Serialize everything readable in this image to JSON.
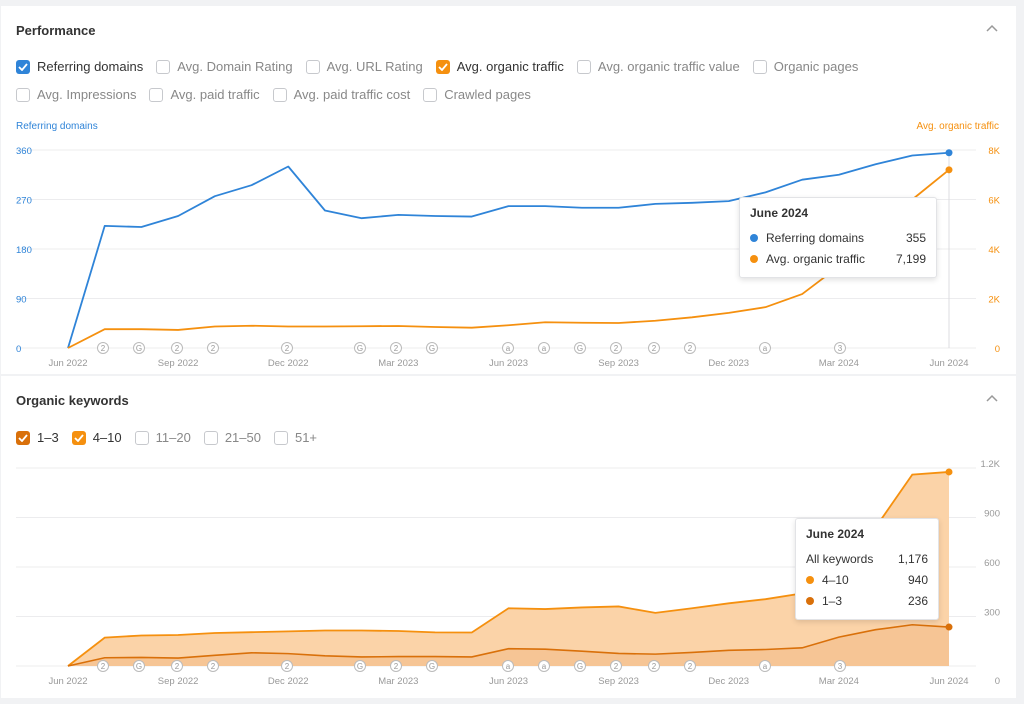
{
  "performance": {
    "title": "Performance",
    "checkboxes_row1": [
      {
        "label": "Referring domains",
        "checked": true,
        "color": "#2f84d8"
      },
      {
        "label": "Avg. Domain Rating",
        "checked": false
      },
      {
        "label": "Avg. URL Rating",
        "checked": false
      },
      {
        "label": "Avg. organic traffic",
        "checked": true,
        "color": "#f5900f"
      },
      {
        "label": "Avg. organic traffic value",
        "checked": false
      },
      {
        "label": "Organic pages",
        "checked": false
      }
    ],
    "checkboxes_row2": [
      {
        "label": "Avg. Impressions",
        "checked": false
      },
      {
        "label": "Avg. paid traffic",
        "checked": false
      },
      {
        "label": "Avg. paid traffic cost",
        "checked": false
      },
      {
        "label": "Crawled pages",
        "checked": false
      }
    ],
    "left_axis_title": "Referring domains",
    "right_axis_title": "Avg. organic traffic",
    "tooltip": {
      "title": "June 2024",
      "rows": [
        {
          "label": "Referring domains",
          "value": "355",
          "color": "#2f84d8"
        },
        {
          "label": "Avg. organic traffic",
          "value": "7,199",
          "color": "#f5900f"
        }
      ]
    }
  },
  "keywords": {
    "title": "Organic keywords",
    "checkboxes": [
      {
        "label": "1–3",
        "checked": true,
        "color": "#d9700a"
      },
      {
        "label": "4–10",
        "checked": true,
        "color": "#f5900f"
      },
      {
        "label": "11–20",
        "checked": false
      },
      {
        "label": "21–50",
        "checked": false
      },
      {
        "label": "51+",
        "checked": false
      }
    ],
    "tooltip": {
      "title": "June 2024",
      "rows": [
        {
          "label": "All keywords",
          "value": "1,176",
          "color": ""
        },
        {
          "label": "4–10",
          "value": "940",
          "color": "#f5900f"
        },
        {
          "label": "1–3",
          "value": "236",
          "color": "#d9700a"
        }
      ]
    }
  },
  "chart_data": [
    {
      "type": "line",
      "x": [
        "2022-06",
        "2022-07",
        "2022-08",
        "2022-09",
        "2022-10",
        "2022-11",
        "2022-12",
        "2023-01",
        "2023-02",
        "2023-03",
        "2023-04",
        "2023-05",
        "2023-06",
        "2023-07",
        "2023-08",
        "2023-09",
        "2023-10",
        "2023-11",
        "2023-12",
        "2024-01",
        "2024-02",
        "2024-03",
        "2024-04",
        "2024-05",
        "2024-06"
      ],
      "x_ticks": [
        "Jun 2022",
        "Sep 2022",
        "Dec 2022",
        "Mar 2023",
        "Jun 2023",
        "Sep 2023",
        "Dec 2023",
        "Mar 2024",
        "Jun 2024"
      ],
      "y_left": {
        "ticks": [
          "0",
          "90",
          "180",
          "270",
          "360"
        ],
        "ylim": [
          0,
          360
        ],
        "color": "#2f84d8"
      },
      "y_right": {
        "ticks": [
          "0",
          "2K",
          "4K",
          "6K",
          "8K"
        ],
        "ylim": [
          0,
          8000
        ],
        "color": "#f5900f"
      },
      "series": [
        {
          "name": "Referring domains",
          "axis": "left",
          "color": "#2f84d8",
          "values": [
            0,
            222,
            220,
            240,
            276,
            296,
            330,
            250,
            236,
            242,
            240,
            239,
            258,
            258,
            255,
            255,
            262,
            264,
            267,
            283,
            306,
            315,
            334,
            350,
            355
          ]
        },
        {
          "name": "Avg. organic traffic",
          "axis": "right",
          "color": "#f5900f",
          "values": [
            0,
            760,
            760,
            730,
            870,
            900,
            870,
            870,
            880,
            890,
            850,
            820,
            920,
            1040,
            1020,
            1010,
            1100,
            1240,
            1420,
            1650,
            2180,
            3300,
            4700,
            6000,
            7199
          ]
        }
      ],
      "annotations": [
        "2",
        "G",
        "2",
        "2",
        "2",
        "G",
        "2",
        "G",
        "a",
        "a",
        "G",
        "2",
        "2",
        "2",
        "a",
        "3"
      ],
      "grid": true
    },
    {
      "type": "area",
      "x": [
        "2022-06",
        "2022-07",
        "2022-08",
        "2022-09",
        "2022-10",
        "2022-11",
        "2022-12",
        "2023-01",
        "2023-02",
        "2023-03",
        "2023-04",
        "2023-05",
        "2023-06",
        "2023-07",
        "2023-08",
        "2023-09",
        "2023-10",
        "2023-11",
        "2023-12",
        "2024-01",
        "2024-02",
        "2024-03",
        "2024-04",
        "2024-05",
        "2024-06"
      ],
      "x_ticks": [
        "Jun 2022",
        "Sep 2022",
        "Dec 2022",
        "Mar 2023",
        "Jun 2023",
        "Sep 2023",
        "Dec 2023",
        "Mar 2024",
        "Jun 2024"
      ],
      "y_right": {
        "ticks": [
          "0",
          "300",
          "600",
          "900",
          "1.2K"
        ],
        "ylim": [
          0,
          1200
        ]
      },
      "stacked": true,
      "series": [
        {
          "name": "1–3",
          "color": "#d9700a",
          "values": [
            0,
            50,
            52,
            48,
            65,
            80,
            75,
            62,
            55,
            57,
            57,
            55,
            105,
            102,
            90,
            76,
            72,
            82,
            95,
            100,
            110,
            175,
            220,
            250,
            236
          ]
        },
        {
          "name": "4–10",
          "color": "#f5900f",
          "values": [
            0,
            122,
            133,
            140,
            135,
            125,
            135,
            153,
            160,
            155,
            147,
            148,
            245,
            243,
            265,
            285,
            250,
            268,
            285,
            305,
            330,
            390,
            620,
            910,
            940
          ]
        }
      ],
      "annotations": [
        "2",
        "G",
        "2",
        "2",
        "2",
        "G",
        "2",
        "G",
        "a",
        "a",
        "G",
        "2",
        "2",
        "2",
        "a",
        "3"
      ],
      "grid": true
    }
  ]
}
